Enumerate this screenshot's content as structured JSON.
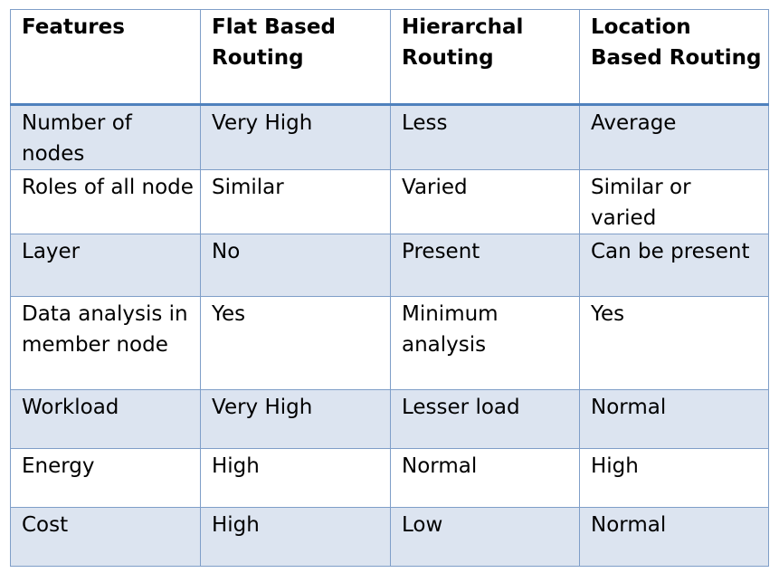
{
  "table": {
    "headers": [
      "Features",
      "Flat Based Routing",
      "Hierarchal Routing",
      "Location Based Routing"
    ],
    "rows": [
      [
        "Number of nodes",
        "Very High",
        "Less",
        "Average"
      ],
      [
        "Roles of all node",
        "Similar",
        "Varied",
        "Similar or varied"
      ],
      [
        "Layer",
        "No",
        "Present",
        "Can be present"
      ],
      [
        "Data analysis in member node",
        "Yes",
        "Minimum analysis",
        "Yes"
      ],
      [
        "Workload",
        "Very High",
        "Lesser load",
        "Normal"
      ],
      [
        "Energy",
        "High",
        "Normal",
        "High"
      ],
      [
        "Cost",
        "High",
        "Low",
        "Normal"
      ]
    ]
  }
}
